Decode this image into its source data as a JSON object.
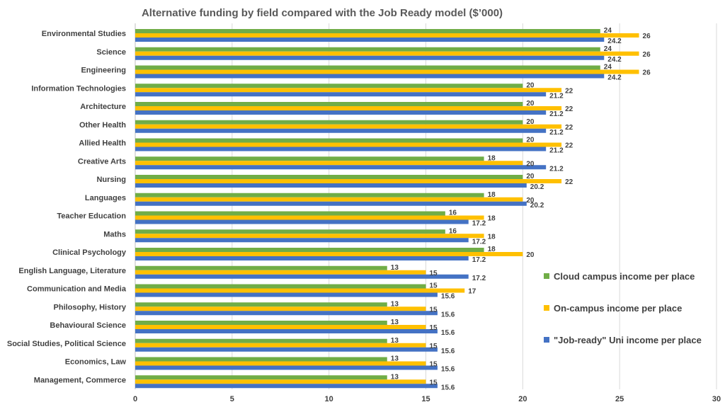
{
  "chart_data": {
    "type": "bar",
    "orientation": "horizontal",
    "title": "Alternative funding by field compared with the Job Ready model ($’000)",
    "xlabel": "",
    "ylabel": "",
    "xlim": [
      0,
      30
    ],
    "xticks": [
      0,
      5,
      10,
      15,
      20,
      25,
      30
    ],
    "grid": true,
    "legend_position": "right",
    "categories": [
      "Environmental Studies",
      "Science",
      "Engineering",
      "Information Technologies",
      "Architecture",
      "Other Health",
      "Allied Health",
      "Creative Arts",
      "Nursing",
      "Languages",
      "Teacher Education",
      "Maths",
      "Clinical Psychology",
      "English Language, Literature",
      "Communication and Media",
      "Philosophy, History",
      "Behavioural Science",
      "Social Studies, Political Science",
      "Economics, Law",
      "Management, Commerce"
    ],
    "series": [
      {
        "name": "Cloud campus income per place",
        "color": "#70AD47",
        "values": [
          24,
          24,
          24,
          20,
          20,
          20,
          20,
          18,
          20,
          18,
          16,
          16,
          18,
          13,
          15,
          13,
          13,
          13,
          13,
          13
        ],
        "labels": [
          "24",
          "24",
          "24",
          "20",
          "20",
          "20",
          "20",
          "18",
          "20",
          "18",
          "16",
          "16",
          "18",
          "13",
          "15",
          "13",
          "13",
          "13",
          "13",
          "13"
        ]
      },
      {
        "name": "On-campus income per place",
        "color": "#FFC000",
        "values": [
          26,
          26,
          26,
          22,
          22,
          22,
          22,
          20,
          22,
          20,
          18,
          18,
          20,
          15,
          17,
          15,
          15,
          15,
          15,
          15
        ],
        "labels": [
          "26",
          "26",
          "26",
          "22",
          "22",
          "22",
          "22",
          "20",
          "22",
          "20",
          "18",
          "18",
          "20",
          "15",
          "17",
          "15",
          "15",
          "15",
          "15",
          "15"
        ]
      },
      {
        "name": "\"Job-ready\" Uni income per place",
        "color": "#4472C4",
        "values": [
          24.2,
          24.2,
          24.2,
          21.2,
          21.2,
          21.2,
          21.2,
          21.2,
          20.2,
          20.2,
          17.2,
          17.2,
          17.2,
          17.2,
          15.6,
          15.6,
          15.6,
          15.6,
          15.6,
          15.6
        ],
        "labels": [
          "24.2",
          "24.2",
          "24.2",
          "21.2",
          "21.2",
          "21.2",
          "21.2",
          "21.2",
          "20.2",
          "20.2",
          "17.2",
          "17.2",
          "17.2",
          "17.2",
          "15.6",
          "15.6",
          "15.6",
          "15.6",
          "15.6",
          "15.6"
        ]
      }
    ]
  },
  "colors": {
    "grid": "#D9D9D9",
    "axis": "#BFBFBF",
    "text": "#404040"
  }
}
